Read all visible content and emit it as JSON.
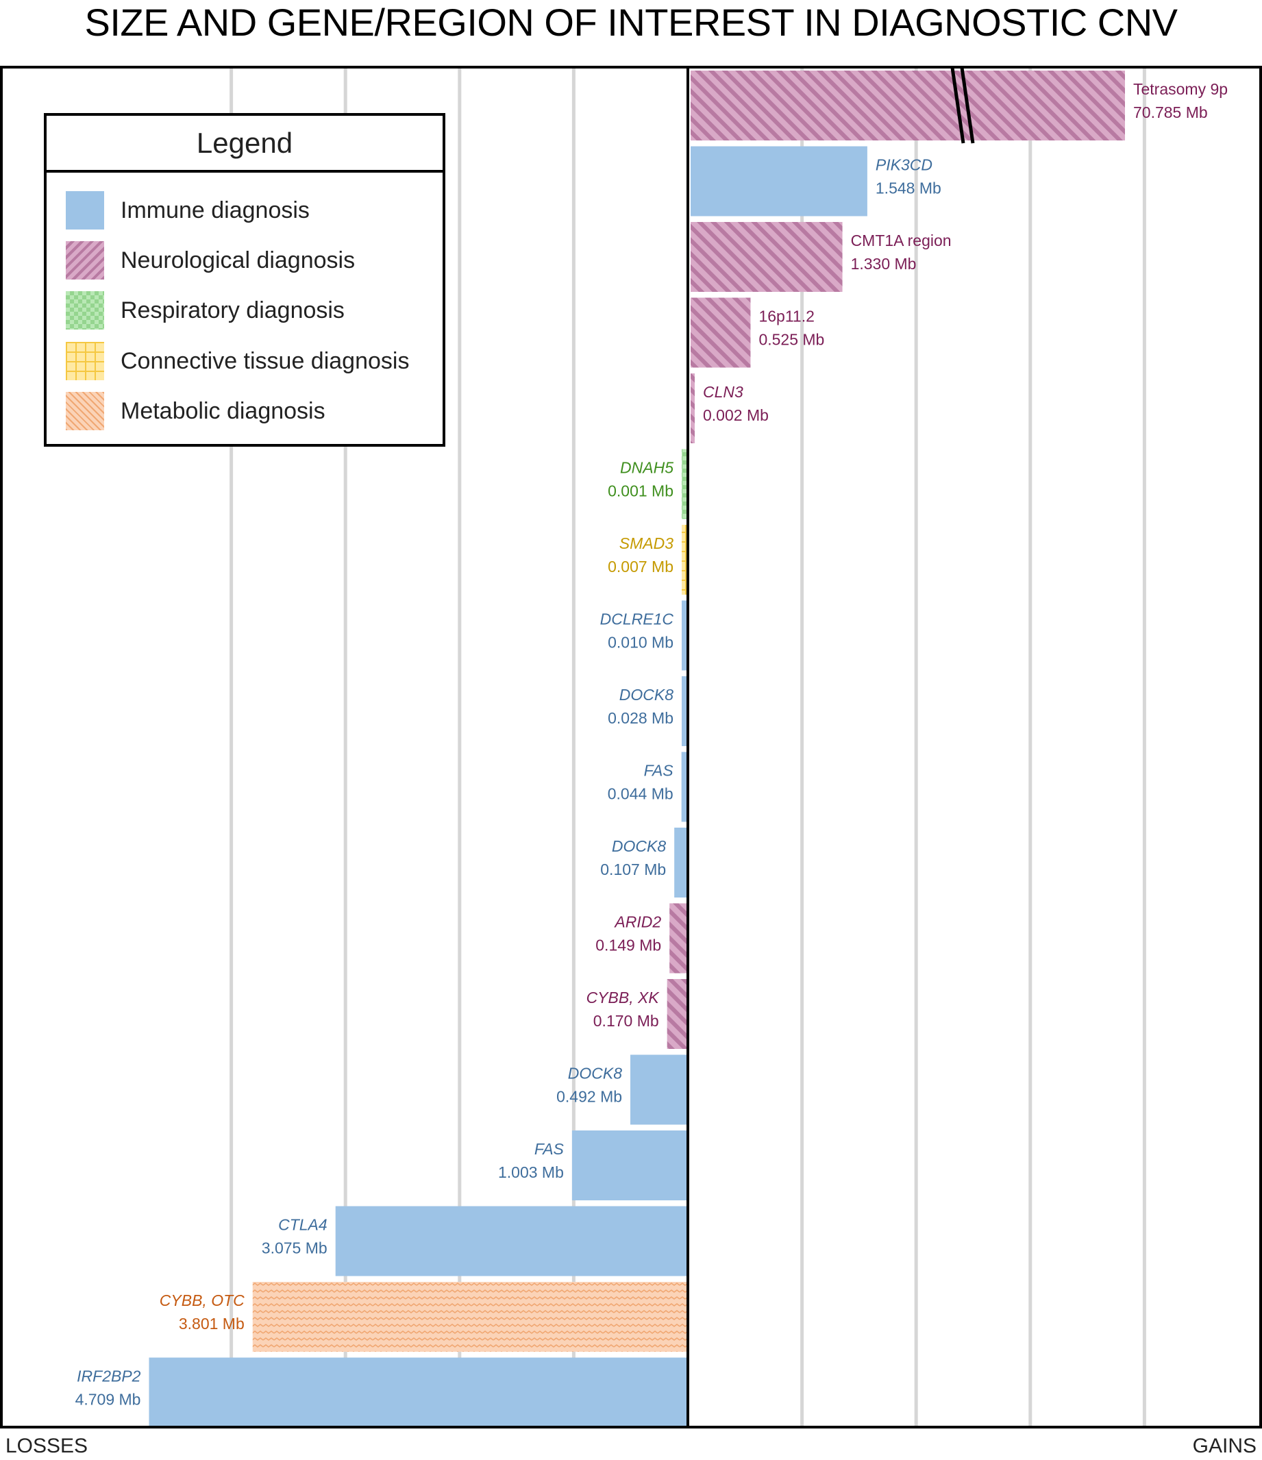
{
  "chart_data": {
    "type": "bar",
    "orientation": "horizontal-diverging",
    "title": "SIZE AND GENE/REGION OF INTEREST IN DIAGNOSTIC CNV",
    "left_label": "LOSSES",
    "right_label": "GAINS",
    "units": "Mb",
    "axis_break": true,
    "grid": "vertical",
    "colors": {
      "immune": "#9dc3e6",
      "neurological": "#c98fb5",
      "respiratory": "#a9dfa6",
      "connective": "#ffe38a",
      "metabolic": "#f8c19d"
    },
    "label_colors": {
      "immune": "#3e6d9c",
      "neurological": "#7b1e56",
      "respiratory": "#3f8f1e",
      "connective": "#c59a00",
      "metabolic": "#c55a11"
    },
    "legend": {
      "title": "Legend",
      "items": [
        {
          "category": "immune",
          "label": "Immune diagnosis"
        },
        {
          "category": "neurological",
          "label": "Neurological diagnosis"
        },
        {
          "category": "respiratory",
          "label": "Respiratory diagnosis"
        },
        {
          "category": "connective",
          "label": "Connective tissue diagnosis"
        },
        {
          "category": "metabolic",
          "label": "Metabolic diagnosis"
        }
      ]
    },
    "gains": [
      {
        "name": "Tetrasomy 9p",
        "size_label": "70.785 Mb",
        "value": 70.785,
        "category": "neurological",
        "italic": false,
        "broken": true
      },
      {
        "name": "PIK3CD",
        "size_label": "1.548 Mb",
        "value": 1.548,
        "category": "immune",
        "italic": true
      },
      {
        "name": "CMT1A region",
        "size_label": "1.330 Mb",
        "value": 1.33,
        "category": "neurological",
        "italic": false
      },
      {
        "name": "16p11.2",
        "size_label": "0.525 Mb",
        "value": 0.525,
        "category": "neurological",
        "italic": false
      },
      {
        "name": "CLN3",
        "size_label": "0.002 Mb",
        "value": 0.002,
        "category": "neurological",
        "italic": true
      }
    ],
    "losses": [
      {
        "name": "DNAH5",
        "size_label": "0.001 Mb",
        "value": 0.001,
        "category": "respiratory",
        "italic": true
      },
      {
        "name": "SMAD3",
        "size_label": "0.007 Mb",
        "value": 0.007,
        "category": "connective",
        "italic": true
      },
      {
        "name": "DCLRE1C",
        "size_label": "0.010 Mb",
        "value": 0.01,
        "category": "immune",
        "italic": true
      },
      {
        "name": "DOCK8",
        "size_label": "0.028 Mb",
        "value": 0.028,
        "category": "immune",
        "italic": true
      },
      {
        "name": "FAS",
        "size_label": "0.044 Mb",
        "value": 0.044,
        "category": "immune",
        "italic": true
      },
      {
        "name": "DOCK8",
        "size_label": "0.107 Mb",
        "value": 0.107,
        "category": "immune",
        "italic": true
      },
      {
        "name": "ARID2",
        "size_label": "0.149 Mb",
        "value": 0.149,
        "category": "neurological",
        "italic": true
      },
      {
        "name": "CYBB, XK",
        "size_label": "0.170 Mb",
        "value": 0.17,
        "category": "neurological",
        "italic": true
      },
      {
        "name": "DOCK8",
        "size_label": "0.492 Mb",
        "value": 0.492,
        "category": "immune",
        "italic": true
      },
      {
        "name": "FAS",
        "size_label": "1.003 Mb",
        "value": 1.003,
        "category": "immune",
        "italic": true
      },
      {
        "name": "CTLA4",
        "size_label": "3.075 Mb",
        "value": 3.075,
        "category": "immune",
        "italic": true
      },
      {
        "name": "CYBB, OTC",
        "size_label": "3.801 Mb",
        "value": 3.801,
        "category": "metabolic",
        "italic": true
      },
      {
        "name": "IRF2BP2",
        "size_label": "4.709 Mb",
        "value": 4.709,
        "category": "immune",
        "italic": true
      }
    ]
  }
}
